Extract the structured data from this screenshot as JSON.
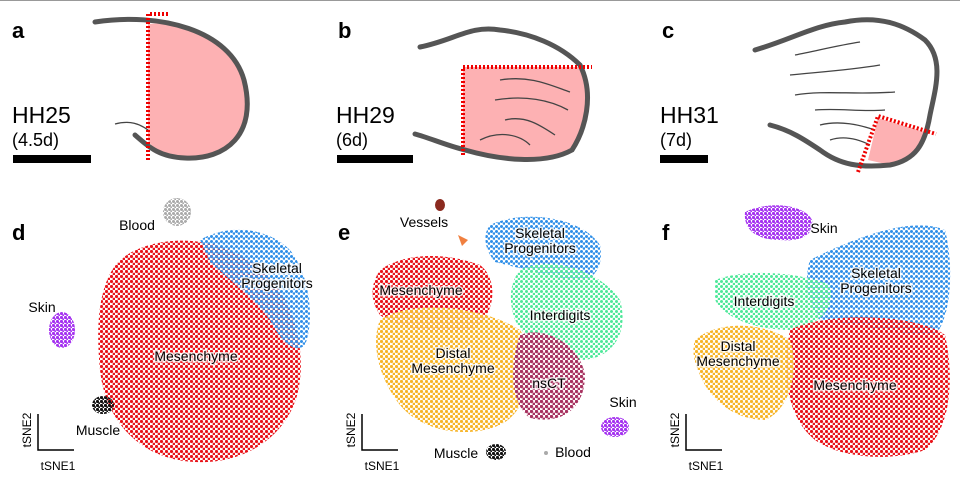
{
  "figure": {
    "top": [
      {
        "letter": "a",
        "stage": "HH25",
        "age": "(4.5d)"
      },
      {
        "letter": "b",
        "stage": "HH29",
        "age": "(6d)"
      },
      {
        "letter": "c",
        "stage": "HH31",
        "age": "(7d)"
      }
    ],
    "bottom": [
      {
        "letter": "d",
        "labels": [
          [
            "Blood"
          ],
          [
            "Skeletal",
            "Progenitors"
          ],
          [
            "Skin"
          ],
          [
            "Mesenchyme"
          ],
          [
            "Muscle"
          ]
        ]
      },
      {
        "letter": "e",
        "labels": [
          [
            "Vessels"
          ],
          [
            "Skeletal",
            "Progenitors"
          ],
          [
            "Mesenchyme"
          ],
          [
            "Interdigits"
          ],
          [
            "Distal",
            "Mesenchyme"
          ],
          [
            "nsCT"
          ],
          [
            "Skin"
          ],
          [
            "Muscle"
          ],
          [
            "Blood"
          ]
        ]
      },
      {
        "letter": "f",
        "labels": [
          [
            "Skin"
          ],
          [
            "Skeletal",
            "Progenitors"
          ],
          [
            "Interdigits"
          ],
          [
            "Distal",
            "Mesenchyme"
          ],
          [
            "Mesenchyme"
          ]
        ]
      }
    ],
    "axis_x": "tSNE1",
    "axis_y": "tSNE2"
  }
}
